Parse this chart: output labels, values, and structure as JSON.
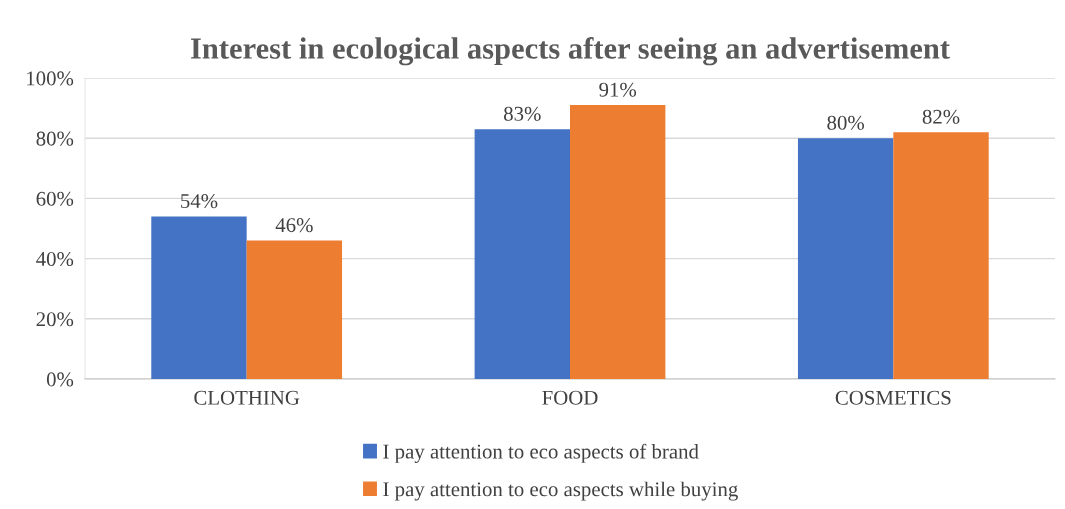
{
  "chart_data": {
    "type": "bar",
    "title": "Interest in ecological aspects after seeing an advertisement",
    "categories": [
      "CLOTHING",
      "FOOD",
      "COSMETICS"
    ],
    "series": [
      {
        "name": "I pay attention to eco aspects of brand",
        "color": "#4472c4",
        "values": [
          54,
          83,
          80
        ],
        "value_labels": [
          "54%",
          "83%",
          "80%"
        ]
      },
      {
        "name": "I pay attention to eco aspects while buying",
        "color": "#ed7d31",
        "values": [
          46,
          91,
          82
        ],
        "value_labels": [
          "46%",
          "91%",
          "82%"
        ]
      }
    ],
    "ylim": [
      0,
      100
    ],
    "yticks": [
      {
        "value": 0,
        "label": "0%"
      },
      {
        "value": 20,
        "label": "20%"
      },
      {
        "value": 40,
        "label": "40%"
      },
      {
        "value": 60,
        "label": "60%"
      },
      {
        "value": 80,
        "label": "80%"
      },
      {
        "value": 100,
        "label": "100%"
      }
    ],
    "grid": "y",
    "legend": "bottom"
  }
}
